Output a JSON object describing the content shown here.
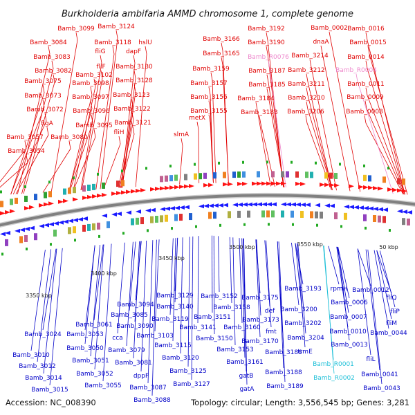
{
  "title": "Burkholderia ambifaria AMMD chromosome 1, complete genome",
  "footer": {
    "accession": "Accession: NC_008390",
    "summary": "Topology: circular; Length: 3,556,545 bp; Genes: 3,281"
  },
  "colors": {
    "forward_label": "#e00000",
    "reverse_label": "#0000c8",
    "rna_forward": "#ee88cc",
    "rna_reverse": "#20c0d8",
    "backbone": "#808080",
    "tick": "#22aa22"
  },
  "scale_labels": [
    "3350 kbp",
    "3400 kbp",
    "3450 kbp",
    "3500 kbp",
    "3550 kbp",
    "50 kbp"
  ],
  "forward_labels": [
    "Bamb_3124",
    "Bamb_3099",
    "hslU",
    "Bamb_3084",
    "Bamb_3118",
    "fliG",
    "dapF",
    "Bamb_3083",
    "fliF",
    "Bamb_3130",
    "Bamb_3082",
    "Bamb_3102",
    "Bamb_3075",
    "Bamb_3098",
    "Bamb_3128",
    "Bamb_3097",
    "Bamb_3123",
    "Bamb_3073",
    "Bamb_3072",
    "Bamb_3096",
    "Bamb_3122",
    "Bamb_3095",
    "Bamb_3121",
    "flgA",
    "fliH",
    "slmA",
    "Bamb_3057",
    "Bamb_3080",
    "Bamb_3054",
    "Bamb_3166",
    "Bamb_3165",
    "Bamb_3159",
    "Bamb_3157",
    "Bamb_3156",
    "Bamb_3155",
    "metX",
    "Bamb_3192",
    "Bamb_3190",
    "Bamb_3187",
    "Bamb_3185",
    "Bamb_3184",
    "Bamb_3183",
    "Bamb_0002",
    "dnaA",
    "Bamb_3214",
    "Bamb_3212",
    "Bamb_3211",
    "Bamb_3210",
    "Bamb_3206",
    "Bamb_0016",
    "Bamb_0015",
    "Bamb_0014",
    "Bamb_0011",
    "Bamb_0009",
    "Bamb_0008"
  ],
  "forward_rna_labels": [
    "Bamb_R0076",
    "Bamb_R0004"
  ],
  "reverse_labels": [
    "Bamb_3129",
    "Bamb_3152",
    "Bamb_3175",
    "Bamb_3193",
    "rpmH",
    "Bamb_0012",
    "Bamb_3094",
    "Bamb_3140",
    "Bamb_3158",
    "def",
    "Bamb_3200",
    "Bamb_0006",
    "Bamb_3061",
    "Bamb_3085",
    "Bamb_3119",
    "Bamb_3151",
    "Bamb_3173",
    "Bamb_0007",
    "fliQ",
    "Bamb_3024",
    "Bamb_3053",
    "cca",
    "Bamb_3090",
    "Bamb_3141",
    "Bamb_3160",
    "fmt",
    "Bamb_3202",
    "Bamb_0010",
    "fliP",
    "Bamb_3103",
    "Bamb_3150",
    "Bamb_3170",
    "Bamb_3204",
    "fliM",
    "Bamb_0044",
    "Bamb_3010",
    "Bamb_3050",
    "Bamb_3079",
    "Bamb_3115",
    "Bamb_3153",
    "trmE",
    "Bamb_0013",
    "Bamb_3012",
    "Bamb_3051",
    "Bamb_3081",
    "Bamb_3120",
    "Bamb_3161",
    "Bamb_3186",
    "fliL",
    "Bamb_3052",
    "Bamb_3125",
    "gatB",
    "Bamb_3188",
    "Bamb_0041",
    "Bamb_3014",
    "Bamb_3055",
    "dppF",
    "Bamb_3087",
    "Bamb_3127",
    "gatA",
    "Bamb_3189",
    "Bamb_0043",
    "Bamb_3015",
    "Bamb_3088"
  ],
  "reverse_rna_labels": [
    "Bamb_R0001",
    "Bamb_R0002"
  ]
}
